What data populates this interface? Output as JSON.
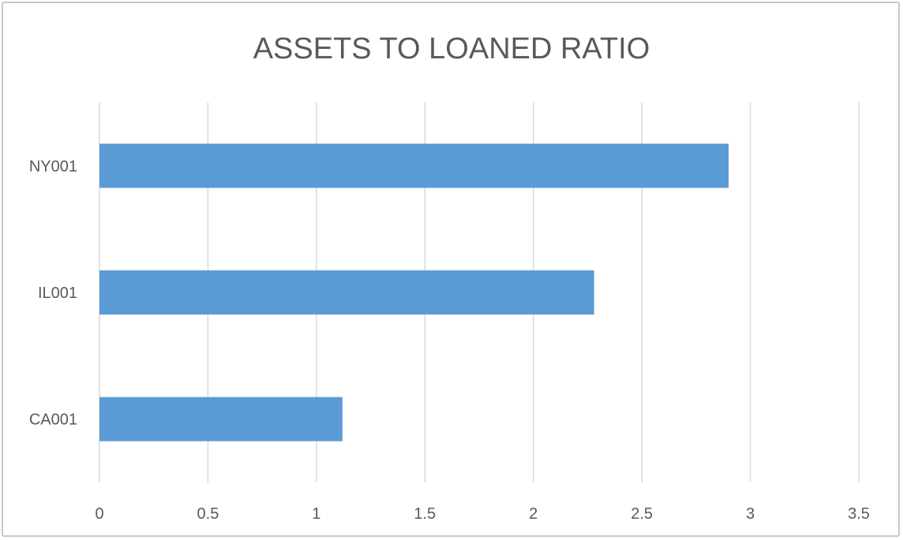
{
  "chart_data": {
    "type": "bar",
    "orientation": "horizontal",
    "title": "ASSETS TO LOANED RATIO",
    "xlabel": "",
    "ylabel": "",
    "categories": [
      "NY001",
      "IL001",
      "CA001"
    ],
    "series": [
      {
        "values": [
          2.9,
          2.28,
          1.12
        ],
        "color": "#5b9bd5"
      }
    ],
    "xlim": [
      0,
      3.5
    ],
    "x_ticks": [
      "0",
      "0.5",
      "1",
      "1.5",
      "2",
      "2.5",
      "3",
      "3.5"
    ],
    "x_tick_values": [
      0,
      0.5,
      1,
      1.5,
      2,
      2.5,
      3,
      3.5
    ],
    "grid": true,
    "grid_color": "#d9d9d9",
    "legend": "none"
  }
}
